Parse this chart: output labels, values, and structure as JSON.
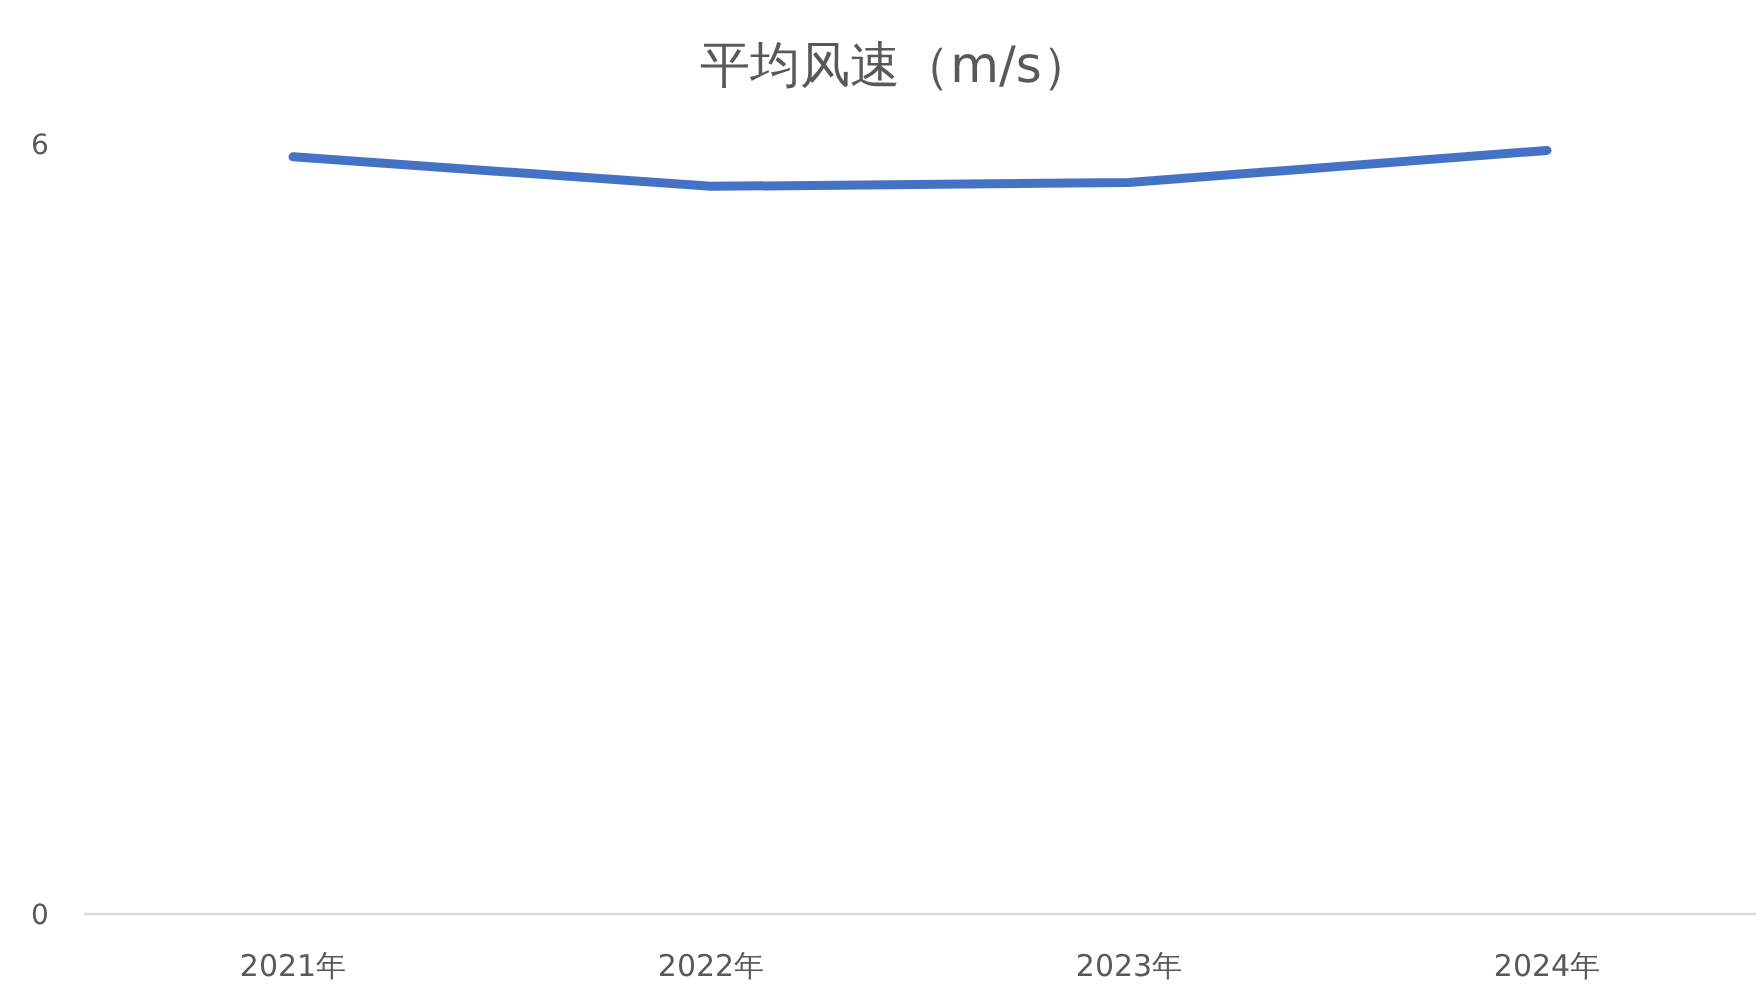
{
  "chart_data": {
    "type": "line",
    "title": "平均风速（m/s）",
    "categories": [
      "2021年",
      "2022年",
      "2023年",
      "2024年"
    ],
    "series": [
      {
        "color": "#4472c4",
        "values": [
          5.9,
          5.67,
          5.7,
          5.95
        ]
      }
    ],
    "ylim": [
      0,
      6
    ],
    "yticks": [
      0,
      6
    ],
    "grid": false,
    "line_style": "solid"
  }
}
